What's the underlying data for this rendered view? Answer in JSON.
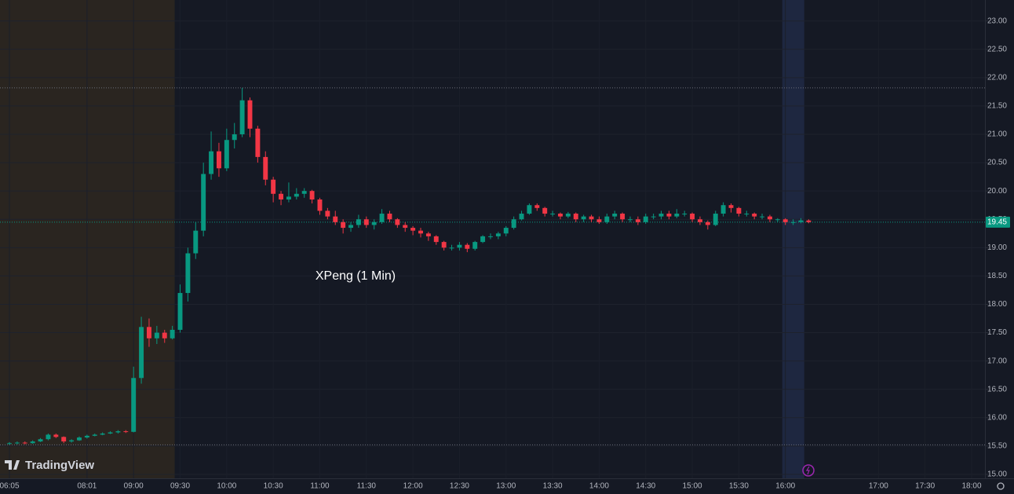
{
  "chart_data": {
    "type": "candlestick",
    "annotation": "XPeng (1 Min)",
    "watermark": "TradingView",
    "up_color": "#089981",
    "down_color": "#f23645",
    "x": [
      "06:05",
      null,
      null,
      null,
      null,
      null,
      null,
      null,
      null,
      null,
      "08:01",
      null,
      null,
      null,
      null,
      null,
      "09:00",
      null,
      null,
      null,
      null,
      null,
      "09:30",
      null,
      null,
      null,
      null,
      null,
      "10:00",
      null,
      null,
      null,
      null,
      null,
      "10:30",
      null,
      null,
      null,
      null,
      null,
      "11:00",
      null,
      null,
      null,
      null,
      null,
      "11:30",
      null,
      null,
      null,
      null,
      null,
      "12:00",
      null,
      null,
      null,
      null,
      null,
      "12:30",
      null,
      null,
      null,
      null,
      null,
      "13:00",
      null,
      null,
      null,
      null,
      null,
      "13:30",
      null,
      null,
      null,
      null,
      null,
      "14:00",
      null,
      null,
      null,
      null,
      null,
      "14:30",
      null,
      null,
      null,
      null,
      null,
      "15:00",
      null,
      null,
      null,
      null,
      null,
      "15:30",
      null,
      null,
      null,
      null,
      null,
      "16:00",
      null,
      null,
      null,
      null,
      null,
      null,
      null,
      null,
      null,
      null,
      null,
      "17:00",
      null,
      null,
      null,
      null,
      null,
      "17:30",
      null,
      null,
      null,
      null,
      null,
      "18:00"
    ],
    "open": [
      15.54,
      15.55,
      15.56,
      15.55,
      15.58,
      15.62,
      15.7,
      15.66,
      15.58,
      15.6,
      15.65,
      15.68,
      15.7,
      15.72,
      15.74,
      15.76,
      15.75,
      16.7,
      17.6,
      17.4,
      17.5,
      17.4,
      17.55,
      18.2,
      18.9,
      19.3,
      20.3,
      20.7,
      20.4,
      20.9,
      21.0,
      21.6,
      21.1,
      20.6,
      20.2,
      19.95,
      19.85,
      19.9,
      19.95,
      20.0,
      19.85,
      19.65,
      19.55,
      19.45,
      19.35,
      19.4,
      19.5,
      19.4,
      19.45,
      19.6,
      19.5,
      19.4,
      19.35,
      19.3,
      19.25,
      19.2,
      19.1,
      19.0,
      19.0,
      19.05,
      18.98,
      19.1,
      19.2,
      19.2,
      19.25,
      19.35,
      19.5,
      19.6,
      19.75,
      19.7,
      19.6,
      19.6,
      19.55,
      19.6,
      19.5,
      19.55,
      19.5,
      19.45,
      19.55,
      19.6,
      19.5,
      19.5,
      19.45,
      19.55,
      19.55,
      19.6,
      19.55,
      19.6,
      19.6,
      19.5,
      19.45,
      19.4,
      19.6,
      19.75,
      19.7,
      19.6,
      19.6,
      19.55,
      19.55,
      19.5,
      19.5,
      19.45,
      19.45,
      19.48,
      null,
      null,
      null,
      null,
      null,
      null,
      null,
      null,
      null,
      null,
      null,
      null,
      null,
      null,
      null,
      null,
      null,
      null,
      null,
      null,
      null
    ],
    "high": [
      15.57,
      15.58,
      15.58,
      15.6,
      15.64,
      15.72,
      15.72,
      15.67,
      15.62,
      15.67,
      15.7,
      15.72,
      15.74,
      15.76,
      15.78,
      15.78,
      16.9,
      17.78,
      17.75,
      17.62,
      17.55,
      17.62,
      18.35,
      19.0,
      19.45,
      20.5,
      21.05,
      20.85,
      21.1,
      21.2,
      21.82,
      21.65,
      21.15,
      20.7,
      20.25,
      20.0,
      20.15,
      20.05,
      20.05,
      20.02,
      19.88,
      19.7,
      19.65,
      19.5,
      19.45,
      19.58,
      19.55,
      19.5,
      19.68,
      19.65,
      19.52,
      19.45,
      19.38,
      19.35,
      19.28,
      19.22,
      19.12,
      19.05,
      19.1,
      19.08,
      19.12,
      19.22,
      19.25,
      19.28,
      19.38,
      19.55,
      19.65,
      19.78,
      19.78,
      19.72,
      19.65,
      19.62,
      19.63,
      19.62,
      19.58,
      19.58,
      19.55,
      19.6,
      19.65,
      19.62,
      19.55,
      19.55,
      19.6,
      19.6,
      19.65,
      19.65,
      19.68,
      19.65,
      19.62,
      19.55,
      19.48,
      19.65,
      19.8,
      19.78,
      19.72,
      19.65,
      19.62,
      19.6,
      19.58,
      19.52,
      19.52,
      19.5,
      19.52,
      19.5,
      null,
      null,
      null,
      null,
      null,
      null,
      null,
      null,
      null,
      null,
      null,
      null,
      null,
      null,
      null,
      null,
      null,
      null,
      null,
      null,
      null
    ],
    "low": [
      15.52,
      15.53,
      15.53,
      15.54,
      15.57,
      15.6,
      15.64,
      15.55,
      15.56,
      15.59,
      15.63,
      15.67,
      15.69,
      15.71,
      15.72,
      15.73,
      15.74,
      16.6,
      17.25,
      17.3,
      17.32,
      17.38,
      17.5,
      18.05,
      18.8,
      19.2,
      20.2,
      20.25,
      20.35,
      20.75,
      20.95,
      20.95,
      20.5,
      20.1,
      19.8,
      19.75,
      19.8,
      19.85,
      19.88,
      19.78,
      19.58,
      19.5,
      19.4,
      19.25,
      19.28,
      19.35,
      19.35,
      19.32,
      19.42,
      19.45,
      19.35,
      19.28,
      19.22,
      19.18,
      19.12,
      19.05,
      18.95,
      18.95,
      18.95,
      18.92,
      18.95,
      19.08,
      19.15,
      19.15,
      19.2,
      19.32,
      19.48,
      19.58,
      19.65,
      19.55,
      19.55,
      19.5,
      19.52,
      19.45,
      19.45,
      19.45,
      19.42,
      19.42,
      19.5,
      19.45,
      19.45,
      19.4,
      19.42,
      19.5,
      19.5,
      19.5,
      19.52,
      19.55,
      19.45,
      19.4,
      19.32,
      19.38,
      19.55,
      19.62,
      19.55,
      19.55,
      19.5,
      19.5,
      19.45,
      19.45,
      19.4,
      19.4,
      19.43,
      19.43,
      null,
      null,
      null,
      null,
      null,
      null,
      null,
      null,
      null,
      null,
      null,
      null,
      null,
      null,
      null,
      null,
      null,
      null,
      null,
      null,
      null
    ],
    "close": [
      15.55,
      15.56,
      15.55,
      15.58,
      15.62,
      15.7,
      15.66,
      15.58,
      15.6,
      15.65,
      15.68,
      15.7,
      15.72,
      15.74,
      15.76,
      15.75,
      16.7,
      17.6,
      17.4,
      17.5,
      17.4,
      17.55,
      18.2,
      18.9,
      19.3,
      20.3,
      20.7,
      20.4,
      20.9,
      21.0,
      21.6,
      21.1,
      20.6,
      20.2,
      19.95,
      19.85,
      19.9,
      19.95,
      20.0,
      19.85,
      19.65,
      19.55,
      19.45,
      19.35,
      19.4,
      19.5,
      19.4,
      19.45,
      19.6,
      19.5,
      19.4,
      19.35,
      19.3,
      19.25,
      19.2,
      19.1,
      19.0,
      19.0,
      19.05,
      18.98,
      19.1,
      19.2,
      19.2,
      19.25,
      19.35,
      19.5,
      19.6,
      19.75,
      19.7,
      19.6,
      19.6,
      19.55,
      19.6,
      19.5,
      19.55,
      19.5,
      19.45,
      19.55,
      19.6,
      19.5,
      19.5,
      19.45,
      19.55,
      19.55,
      19.6,
      19.55,
      19.6,
      19.6,
      19.5,
      19.45,
      19.4,
      19.6,
      19.75,
      19.7,
      19.6,
      19.6,
      19.55,
      19.55,
      19.5,
      19.5,
      19.45,
      19.45,
      19.48,
      19.45,
      null,
      null,
      null,
      null,
      null,
      null,
      null,
      null,
      null,
      null,
      null,
      null,
      null,
      null,
      null,
      null,
      null,
      null,
      null,
      null,
      null
    ],
    "ylim": [
      14.93,
      23.37
    ],
    "yticks": [
      {
        "value": 15,
        "label": "15.00"
      },
      {
        "value": 15.5,
        "label": "15.50"
      },
      {
        "value": 16,
        "label": "16.00"
      },
      {
        "value": 16.5,
        "label": "16.50"
      },
      {
        "value": 17,
        "label": "17.00"
      },
      {
        "value": 17.5,
        "label": "17.50"
      },
      {
        "value": 18,
        "label": "18.00"
      },
      {
        "value": 18.5,
        "label": "18.50"
      },
      {
        "value": 19,
        "label": "19.00"
      },
      {
        "value": 19.5,
        "label": "19.50"
      },
      {
        "value": 20,
        "label": "20.00"
      },
      {
        "value": 20.5,
        "label": "20.50"
      },
      {
        "value": 21,
        "label": "21.00"
      },
      {
        "value": 21.5,
        "label": "21.50"
      },
      {
        "value": 22,
        "label": "22.00"
      },
      {
        "value": 22.5,
        "label": "22.50"
      },
      {
        "value": 23,
        "label": "23.00"
      }
    ],
    "grid": true,
    "last_price": 19.45,
    "reference_lines": [
      21.82,
      15.52
    ]
  }
}
